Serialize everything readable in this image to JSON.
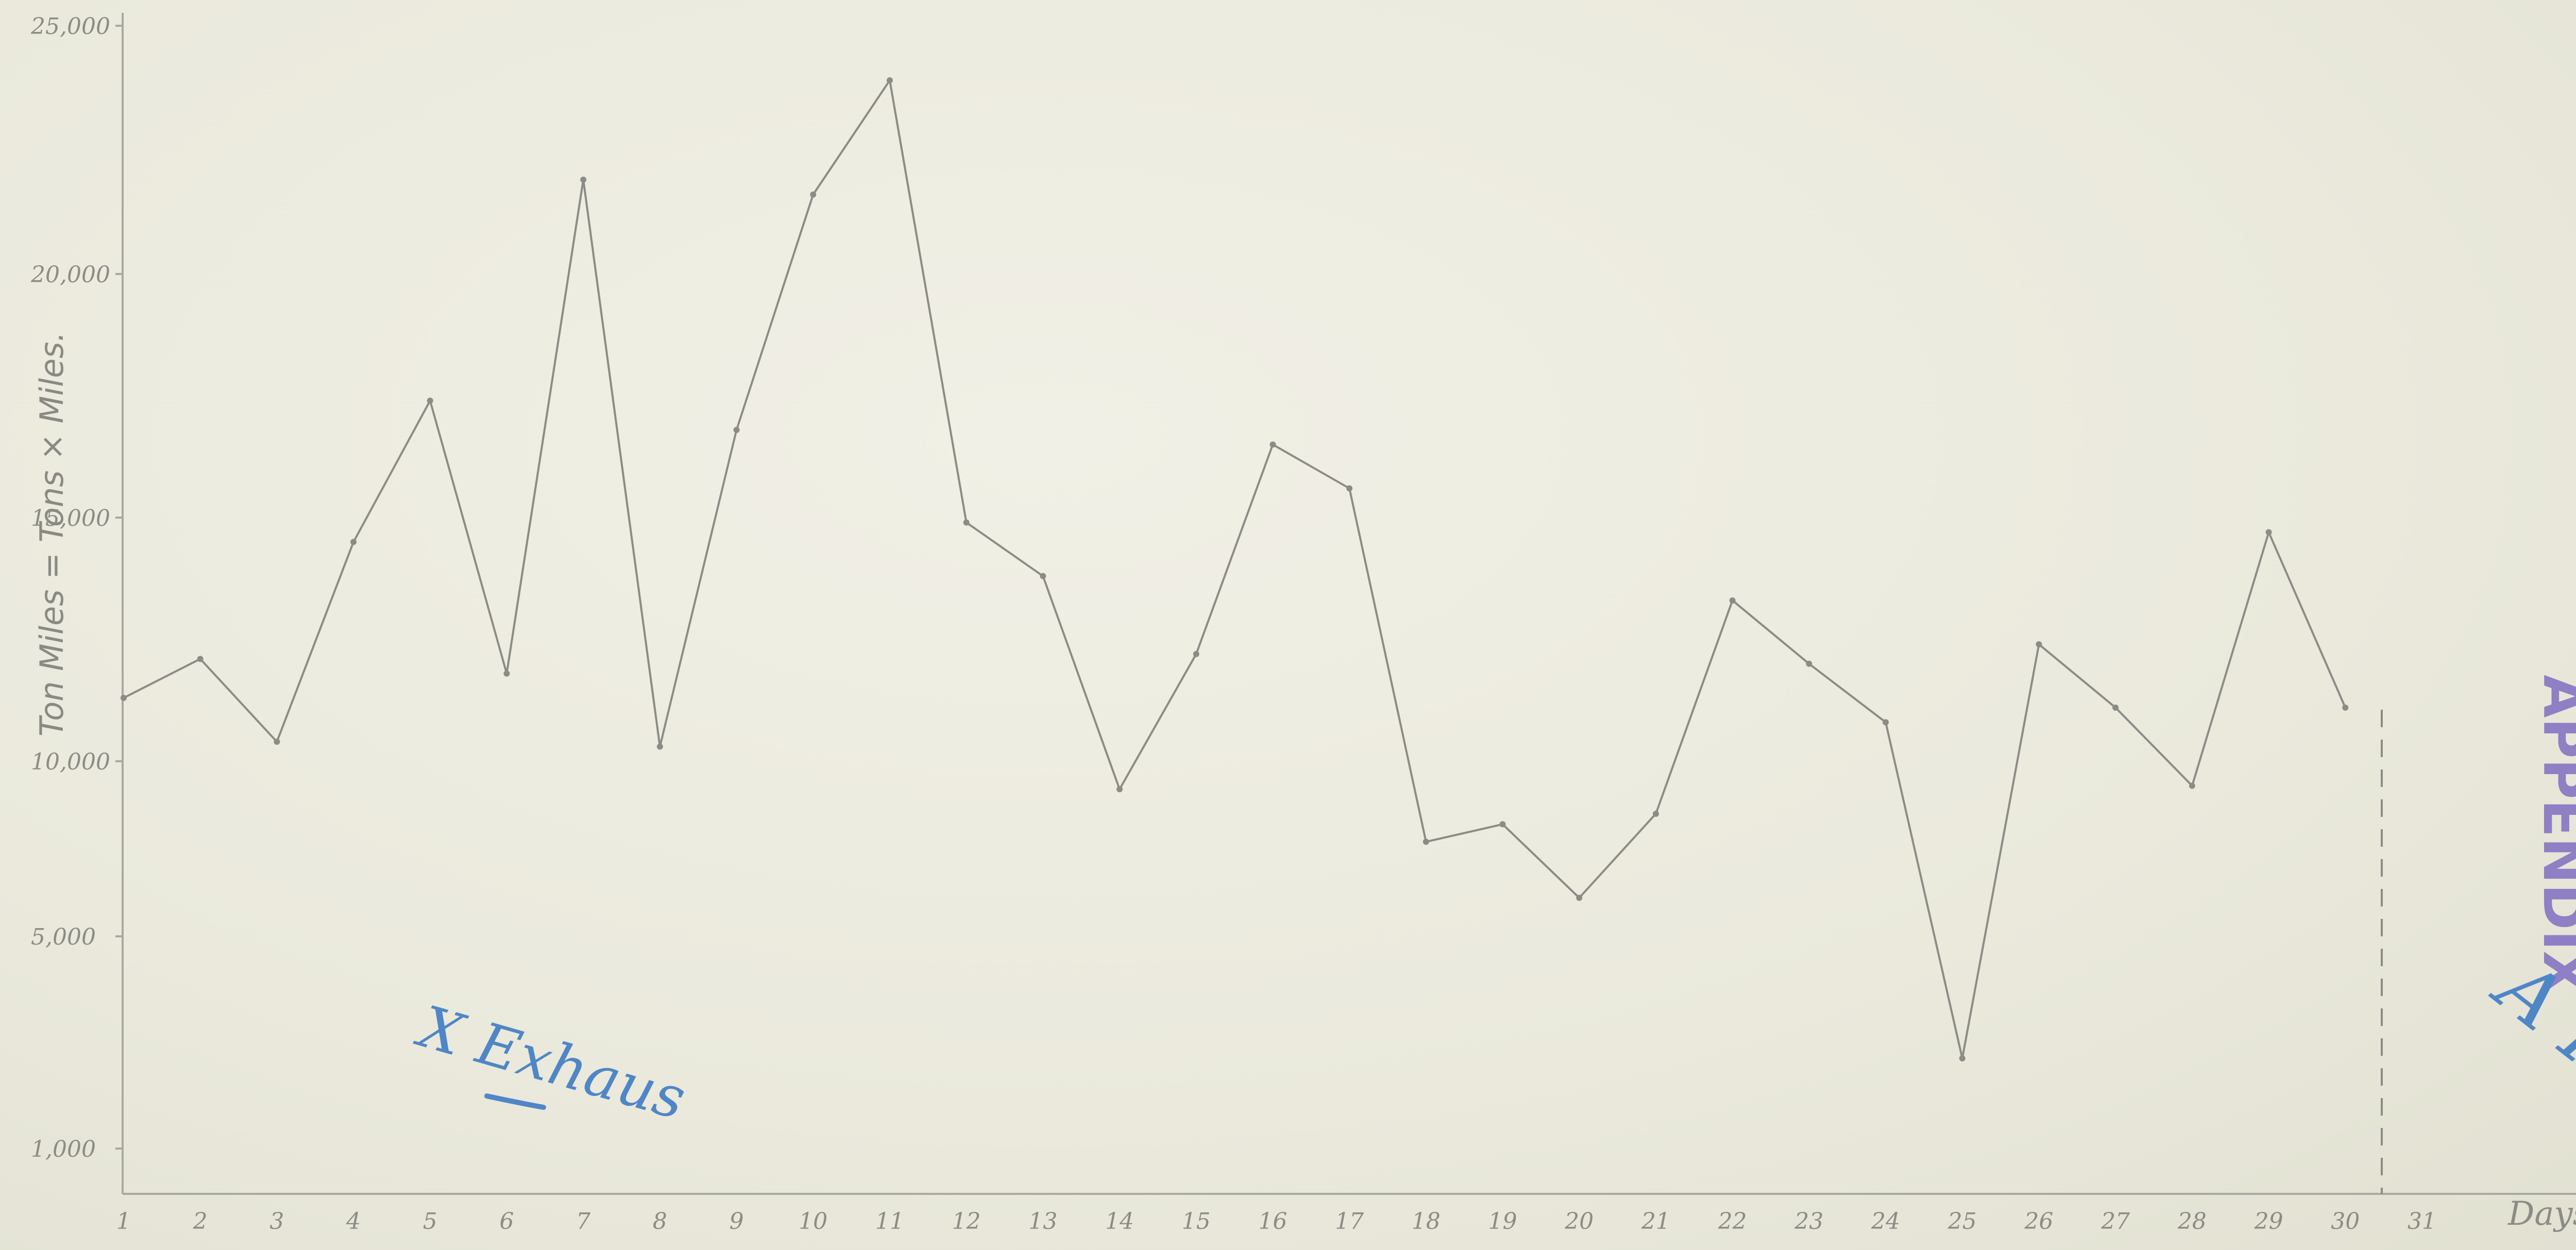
{
  "chart_data": {
    "type": "line",
    "title": "",
    "ylabel": "Ton Miles = Tons × Miles.",
    "xlabel": "Days.",
    "x": [
      1,
      2,
      3,
      4,
      5,
      6,
      7,
      8,
      9,
      10,
      11,
      12,
      13,
      14,
      15,
      16,
      17,
      18,
      19,
      20,
      21,
      22,
      23,
      24,
      25,
      26,
      27,
      28,
      29,
      30
    ],
    "x_ticks": [
      "1",
      "2",
      "3",
      "4",
      "5",
      "6",
      "7",
      "8",
      "9",
      "10",
      "11",
      "12",
      "13",
      "14",
      "15",
      "16",
      "17",
      "18",
      "19",
      "20",
      "21",
      "22",
      "23",
      "24",
      "25",
      "26",
      "27",
      "28",
      "29",
      "30",
      "31"
    ],
    "y_ticks": [
      {
        "value": 25000,
        "label": "25,000"
      },
      {
        "value": 20000,
        "label": "20,000"
      },
      {
        "value": 15000,
        "label": "15,000"
      },
      {
        "value": 10000,
        "label": "10,000"
      },
      {
        "value": 5000,
        "label": "5,000"
      },
      {
        "value": 1000,
        "label": "1,000"
      }
    ],
    "series": [
      {
        "values": [
          11300,
          12100,
          10400,
          14500,
          17400,
          11800,
          21900,
          10300,
          16800,
          21600,
          23900,
          14900,
          13800,
          9200,
          12200,
          16500,
          15600,
          7700,
          8200,
          6100,
          8500,
          13300,
          12000,
          10800,
          2700,
          12400,
          11100,
          9300,
          14700,
          11100
        ]
      }
    ],
    "annotations": [
      "APPENDIX",
      "A IX",
      "X Exhaus"
    ],
    "grid": false,
    "legend": "none",
    "line_color": "#8c8c86"
  }
}
